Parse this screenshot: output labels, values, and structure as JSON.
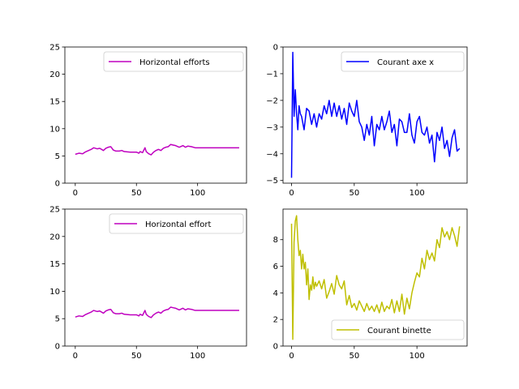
{
  "chart_data": [
    {
      "type": "line",
      "title": "",
      "xlabel": "",
      "ylabel": "",
      "xlim": [
        -8.5,
        140
      ],
      "ylim": [
        0,
        25
      ],
      "xticks": [
        0,
        50,
        100
      ],
      "yticks": [
        0,
        5,
        10,
        15,
        20,
        25
      ],
      "legend_position": "upper right",
      "grid": false,
      "series": [
        {
          "name": "Horizontal efforts",
          "color": "#bf00bf",
          "x": [
            0,
            3,
            6,
            8,
            10,
            13,
            15,
            18,
            20,
            23,
            25,
            27,
            29,
            31,
            33,
            36,
            38,
            40,
            45,
            50,
            52,
            53,
            55,
            57,
            58,
            60,
            62,
            64,
            66,
            68,
            70,
            72,
            74,
            76,
            78,
            80,
            82,
            85,
            88,
            90,
            92,
            95,
            98,
            100,
            110,
            120,
            134
          ],
          "y": [
            5.3,
            5.5,
            5.4,
            5.7,
            5.9,
            6.2,
            6.5,
            6.3,
            6.4,
            6.0,
            6.4,
            6.6,
            6.7,
            6.1,
            5.9,
            5.9,
            6.0,
            5.8,
            5.7,
            5.7,
            5.5,
            5.8,
            5.6,
            6.5,
            5.8,
            5.4,
            5.2,
            5.7,
            6.0,
            6.2,
            6.0,
            6.4,
            6.6,
            6.7,
            7.1,
            7.0,
            6.9,
            6.6,
            6.9,
            6.6,
            6.8,
            6.7,
            6.5,
            6.5,
            6.5,
            6.5,
            6.5
          ]
        }
      ]
    },
    {
      "type": "line",
      "title": "",
      "xlabel": "",
      "ylabel": "",
      "xlim": [
        -6.8,
        140
      ],
      "ylim": [
        -5.1,
        0
      ],
      "xticks": [
        0,
        50,
        100
      ],
      "yticks": [
        -5,
        -4,
        -3,
        -2,
        -1,
        0
      ],
      "legend_position": "upper right",
      "grid": false,
      "series": [
        {
          "name": "Courant axe x",
          "color": "#0000ff",
          "x": [
            0,
            1,
            2,
            3,
            4,
            5,
            6,
            7,
            8,
            10,
            12,
            14,
            16,
            18,
            20,
            22,
            24,
            26,
            28,
            30,
            32,
            34,
            36,
            38,
            40,
            42,
            44,
            46,
            48,
            50,
            52,
            54,
            56,
            58,
            60,
            62,
            64,
            66,
            68,
            70,
            72,
            74,
            76,
            78,
            80,
            82,
            84,
            86,
            88,
            90,
            92,
            94,
            96,
            98,
            100,
            102,
            104,
            106,
            108,
            110,
            112,
            114,
            116,
            118,
            120,
            122,
            124,
            126,
            128,
            130,
            132,
            134
          ],
          "y": [
            -4.9,
            -0.2,
            -2.6,
            -1.6,
            -2.5,
            -3.1,
            -2.2,
            -2.5,
            -2.6,
            -3.1,
            -2.3,
            -2.4,
            -2.9,
            -2.5,
            -3.0,
            -2.5,
            -2.7,
            -2.2,
            -2.5,
            -2.0,
            -2.6,
            -2.1,
            -2.6,
            -2.2,
            -2.7,
            -2.3,
            -2.9,
            -2.1,
            -2.4,
            -2.6,
            -2.0,
            -2.8,
            -3.0,
            -3.5,
            -2.9,
            -3.3,
            -2.6,
            -3.7,
            -2.9,
            -3.1,
            -2.6,
            -3.1,
            -2.8,
            -2.4,
            -3.2,
            -2.9,
            -3.7,
            -2.7,
            -2.8,
            -3.2,
            -3.2,
            -2.5,
            -3.3,
            -3.6,
            -2.8,
            -2.6,
            -3.2,
            -3.3,
            -3.0,
            -3.6,
            -3.3,
            -4.3,
            -3.2,
            -3.5,
            -3.0,
            -3.8,
            -3.5,
            -4.1,
            -3.4,
            -3.1,
            -3.9,
            -3.8
          ]
        }
      ]
    },
    {
      "type": "line",
      "title": "",
      "xlabel": "",
      "ylabel": "",
      "xlim": [
        -8.5,
        140
      ],
      "ylim": [
        0,
        25
      ],
      "xticks": [
        0,
        50,
        100
      ],
      "yticks": [
        0,
        5,
        10,
        15,
        20,
        25
      ],
      "legend_position": "upper right",
      "grid": false,
      "series": [
        {
          "name": "Horizontal effort",
          "color": "#bf00bf",
          "x": [
            0,
            3,
            6,
            8,
            10,
            13,
            15,
            18,
            20,
            23,
            25,
            27,
            29,
            31,
            33,
            36,
            38,
            40,
            45,
            50,
            52,
            53,
            55,
            57,
            58,
            60,
            62,
            64,
            66,
            68,
            70,
            72,
            74,
            76,
            78,
            80,
            82,
            85,
            88,
            90,
            92,
            95,
            98,
            100,
            110,
            120,
            134
          ],
          "y": [
            5.3,
            5.5,
            5.4,
            5.7,
            5.9,
            6.2,
            6.5,
            6.3,
            6.4,
            6.0,
            6.4,
            6.6,
            6.7,
            6.1,
            5.9,
            5.9,
            6.0,
            5.8,
            5.7,
            5.7,
            5.5,
            5.8,
            5.6,
            6.5,
            5.8,
            5.4,
            5.2,
            5.7,
            6.0,
            6.2,
            6.0,
            6.4,
            6.6,
            6.7,
            7.1,
            7.0,
            6.9,
            6.6,
            6.9,
            6.6,
            6.8,
            6.7,
            6.5,
            6.5,
            6.5,
            6.5,
            6.5
          ]
        }
      ]
    },
    {
      "type": "line",
      "title": "",
      "xlabel": "",
      "ylabel": "",
      "xlim": [
        -6.8,
        140
      ],
      "ylim": [
        0,
        10.3
      ],
      "xticks": [
        0,
        50,
        100
      ],
      "yticks": [
        0,
        2,
        4,
        6,
        8
      ],
      "legend_position": "lower right",
      "grid": false,
      "series": [
        {
          "name": "Courant binette",
          "color": "#bfbf00",
          "x": [
            0,
            1,
            2,
            3,
            4,
            5,
            6,
            7,
            8,
            9,
            10,
            11,
            12,
            13,
            14,
            15,
            16,
            17,
            18,
            19,
            20,
            22,
            24,
            26,
            28,
            30,
            32,
            34,
            36,
            38,
            40,
            42,
            44,
            46,
            48,
            50,
            52,
            54,
            56,
            58,
            60,
            62,
            64,
            66,
            68,
            70,
            72,
            74,
            76,
            78,
            80,
            82,
            84,
            86,
            88,
            90,
            92,
            94,
            96,
            98,
            100,
            102,
            104,
            106,
            108,
            110,
            112,
            114,
            116,
            118,
            120,
            122,
            124,
            126,
            128,
            130,
            132,
            134
          ],
          "y": [
            9.2,
            0.5,
            7.8,
            9.4,
            9.8,
            8.0,
            6.8,
            7.2,
            5.8,
            6.9,
            5.8,
            6.3,
            4.6,
            5.8,
            3.5,
            4.6,
            4.2,
            5.2,
            4.3,
            4.8,
            4.5,
            4.9,
            4.3,
            5.0,
            3.6,
            4.1,
            4.7,
            3.9,
            5.3,
            4.6,
            4.3,
            4.9,
            3.1,
            3.8,
            2.9,
            3.2,
            2.7,
            3.4,
            3.0,
            2.6,
            3.2,
            2.7,
            3.0,
            2.6,
            3.1,
            2.5,
            3.3,
            2.6,
            3.0,
            2.8,
            3.5,
            2.5,
            3.4,
            2.6,
            3.9,
            2.4,
            3.6,
            2.8,
            4.0,
            4.8,
            5.5,
            5.2,
            6.6,
            5.8,
            7.2,
            6.5,
            7.0,
            6.4,
            8.0,
            7.4,
            8.9,
            8.2,
            8.6,
            8.0,
            8.9,
            8.3,
            7.5,
            9.0
          ]
        }
      ]
    }
  ]
}
